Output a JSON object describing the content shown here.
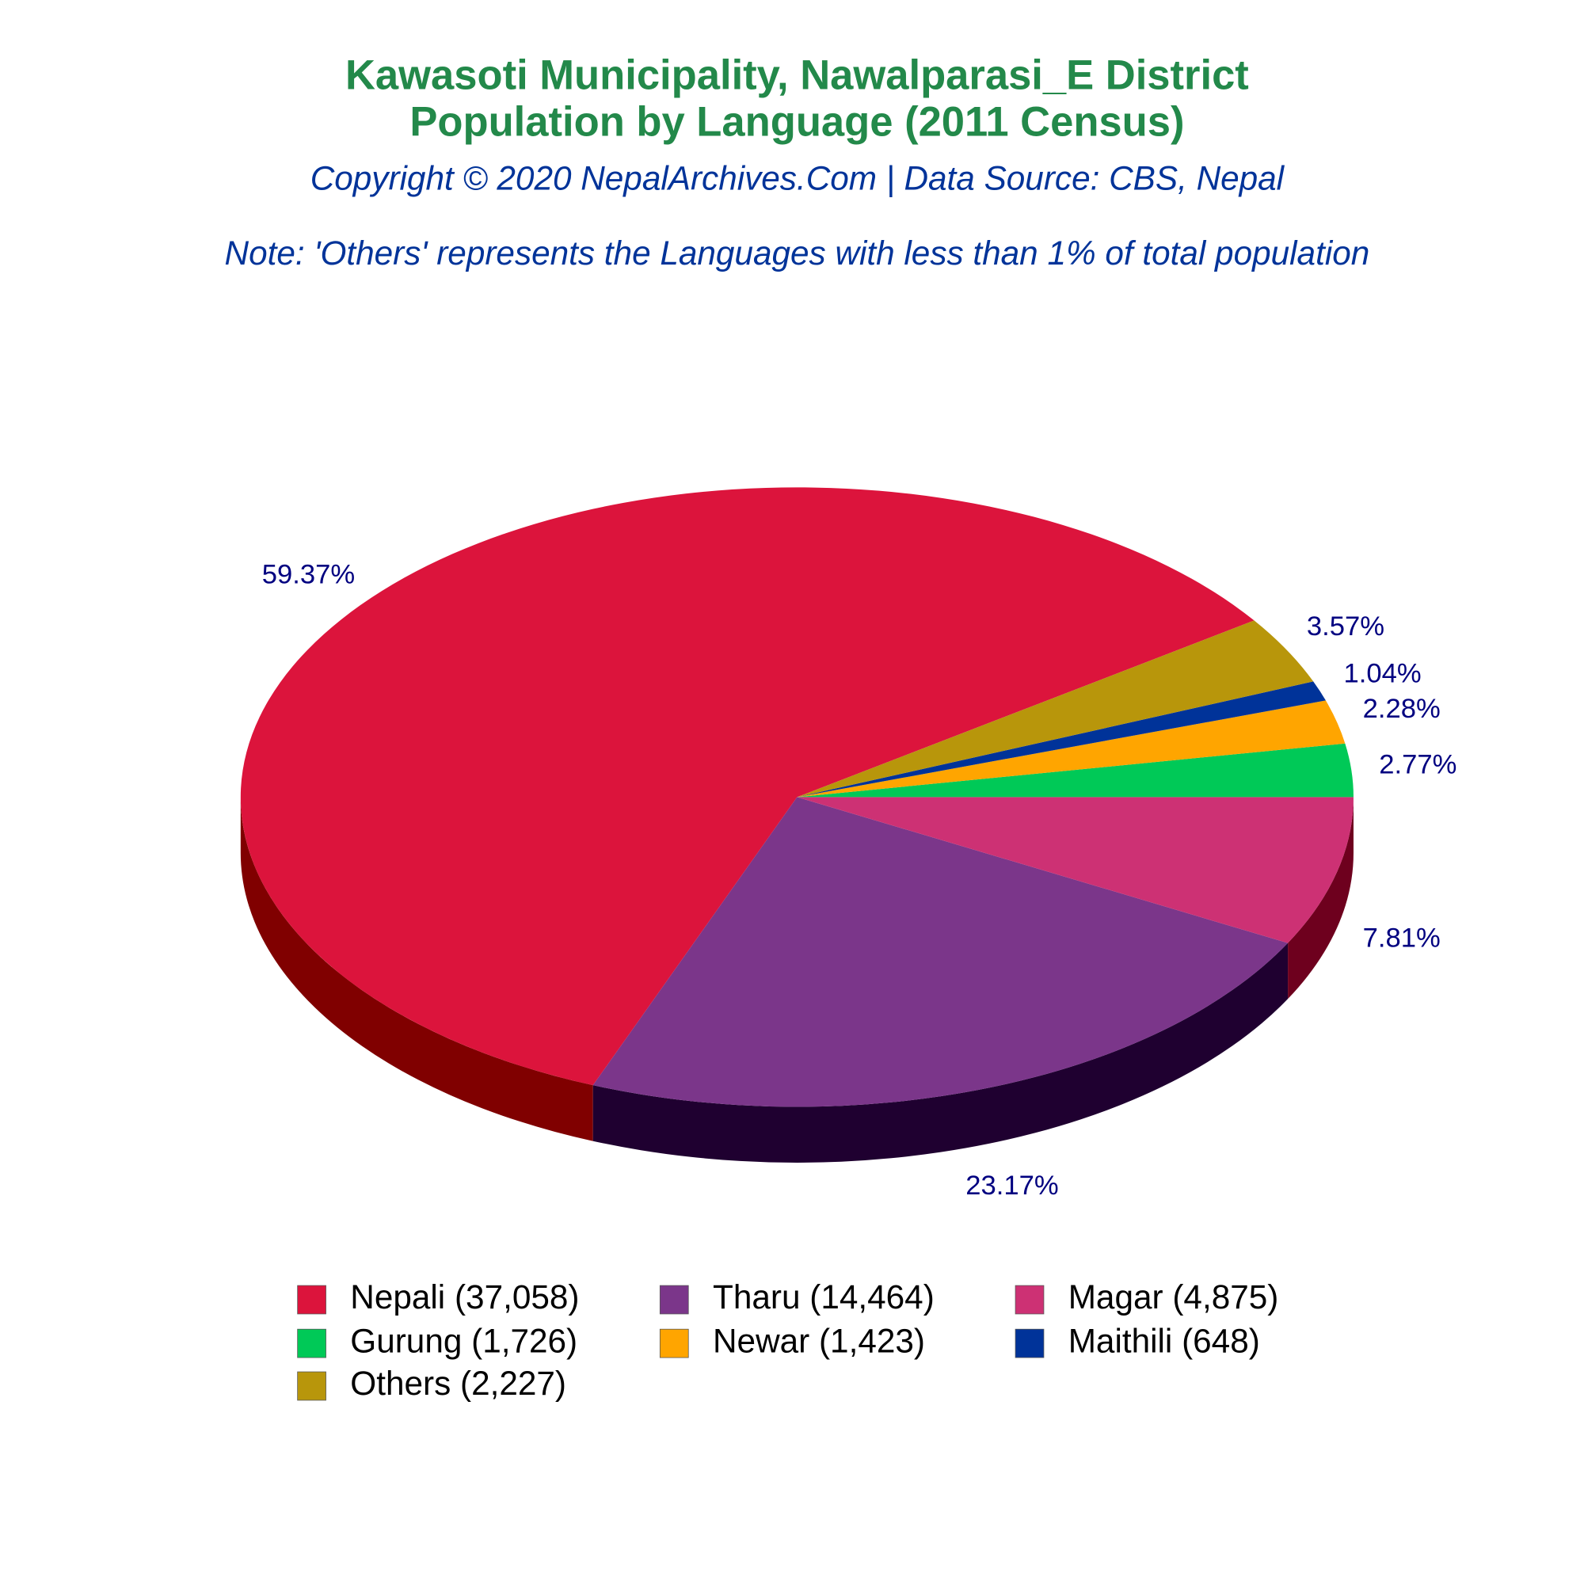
{
  "chart_data": {
    "type": "pie",
    "title": "Kawasoti Municipality, Nawalparasi_E District",
    "subtitle": "Population by Language (2011 Census)",
    "source": "Copyright © 2020 NepalArchives.Com | Data Source: CBS, Nepal",
    "note": "Note: 'Others' represents the Languages with less than 1% of total population",
    "categories": [
      "Nepali (37,058)",
      "Tharu (14,464)",
      "Magar (4,875)",
      "Gurung (1,726)",
      "Newar (1,423)",
      "Maithili (648)",
      "Others (2,227)"
    ],
    "values": [
      59.37,
      23.17,
      7.81,
      2.77,
      2.28,
      1.04,
      3.57
    ],
    "value_labels": [
      "59.37%",
      "23.17%",
      "7.81%",
      "2.77%",
      "2.28%",
      "1.04%",
      "3.57%"
    ],
    "colors": [
      "#dc143c",
      "#7b368a",
      "#cd3174",
      "#00c957",
      "#ffa500",
      "#003399",
      "#b8960b"
    ],
    "side_colors": [
      "#800000",
      "#1f0030",
      "#6e001e",
      "#006b2e",
      "#8a5a00",
      "#001a55",
      "#5c4b05"
    ],
    "legend": "bottom"
  }
}
